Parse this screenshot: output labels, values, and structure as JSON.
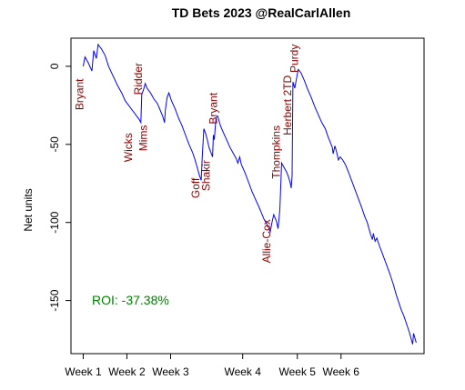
{
  "chart_data": {
    "type": "line",
    "title": "TD Bets 2023 @RealCarlAllen",
    "xlabel": "",
    "ylabel": "Net units",
    "x_ticks": [
      "Week 1",
      "Week 2",
      "Week 3",
      "Week 4",
      "Week 5",
      "Week 6"
    ],
    "y_ticks": [
      0,
      -50,
      -100,
      -150
    ],
    "ylim": [
      -184,
      18
    ],
    "grid": false,
    "roi_text": "ROI: -37.38%",
    "series": [
      {
        "color": "#0000ff",
        "points": [
          [
            1.0,
            0
          ],
          [
            1.04,
            6
          ],
          [
            1.12,
            2
          ],
          [
            1.2,
            -3
          ],
          [
            1.24,
            10
          ],
          [
            1.3,
            5
          ],
          [
            1.34,
            14
          ],
          [
            1.42,
            11
          ],
          [
            1.5,
            7
          ],
          [
            1.58,
            0
          ],
          [
            1.68,
            -6
          ],
          [
            1.78,
            -12
          ],
          [
            1.88,
            -17
          ],
          [
            1.96,
            -22
          ],
          [
            2.04,
            -25
          ],
          [
            2.12,
            -28
          ],
          [
            2.2,
            -31
          ],
          [
            2.28,
            -34
          ],
          [
            2.32,
            -36
          ],
          [
            2.34,
            -18
          ],
          [
            2.38,
            -15
          ],
          [
            2.42,
            -11
          ],
          [
            2.46,
            -14
          ],
          [
            2.54,
            -17
          ],
          [
            2.62,
            -21
          ],
          [
            2.7,
            -24
          ],
          [
            2.76,
            -28
          ],
          [
            2.82,
            -32
          ],
          [
            2.86,
            -36
          ],
          [
            2.88,
            -28
          ],
          [
            2.92,
            -20
          ],
          [
            2.96,
            -17
          ],
          [
            3.02,
            -22
          ],
          [
            3.1,
            -27
          ],
          [
            3.18,
            -33
          ],
          [
            3.26,
            -38
          ],
          [
            3.34,
            -44
          ],
          [
            3.42,
            -50
          ],
          [
            3.5,
            -55
          ],
          [
            3.56,
            -60
          ],
          [
            3.62,
            -66
          ],
          [
            3.66,
            -70
          ],
          [
            3.7,
            -73
          ],
          [
            3.72,
            -60
          ],
          [
            3.76,
            -40
          ],
          [
            3.8,
            -43
          ],
          [
            3.84,
            -47
          ],
          [
            3.88,
            -52
          ],
          [
            3.92,
            -55
          ],
          [
            3.96,
            -58
          ],
          [
            3.98,
            -44
          ],
          [
            4.0,
            -47
          ],
          [
            4.04,
            -33
          ],
          [
            4.08,
            -32
          ],
          [
            4.14,
            -38
          ],
          [
            4.2,
            -42
          ],
          [
            4.28,
            -47
          ],
          [
            4.36,
            -52
          ],
          [
            4.44,
            -56
          ],
          [
            4.5,
            -59
          ],
          [
            4.54,
            -62
          ],
          [
            4.58,
            -58
          ],
          [
            4.62,
            -63
          ],
          [
            4.7,
            -68
          ],
          [
            4.78,
            -74
          ],
          [
            4.86,
            -80
          ],
          [
            4.94,
            -85
          ],
          [
            5.02,
            -90
          ],
          [
            5.08,
            -94
          ],
          [
            5.14,
            -98
          ],
          [
            5.2,
            -101
          ],
          [
            5.24,
            -103
          ],
          [
            5.28,
            -106
          ],
          [
            5.32,
            -100
          ],
          [
            5.36,
            -95
          ],
          [
            5.42,
            -99
          ],
          [
            5.46,
            -104
          ],
          [
            5.5,
            -92
          ],
          [
            5.54,
            -62
          ],
          [
            5.58,
            -64
          ],
          [
            5.62,
            -66
          ],
          [
            5.66,
            -68
          ],
          [
            5.7,
            -71
          ],
          [
            5.74,
            -75
          ],
          [
            5.76,
            -78
          ],
          [
            5.78,
            -70
          ],
          [
            5.8,
            -10
          ],
          [
            5.84,
            -14
          ],
          [
            5.88,
            -8
          ],
          [
            5.92,
            -2
          ],
          [
            5.98,
            -4
          ],
          [
            6.06,
            -9
          ],
          [
            6.14,
            -15
          ],
          [
            6.22,
            -20
          ],
          [
            6.3,
            -26
          ],
          [
            6.38,
            -31
          ],
          [
            6.46,
            -36
          ],
          [
            6.54,
            -40
          ],
          [
            6.6,
            -45
          ],
          [
            6.66,
            -49
          ],
          [
            6.7,
            -52
          ],
          [
            6.72,
            -56
          ],
          [
            6.76,
            -51
          ],
          [
            6.8,
            -55
          ],
          [
            6.84,
            -60
          ],
          [
            6.88,
            -58
          ],
          [
            6.94,
            -60
          ],
          [
            7.0,
            -63
          ],
          [
            7.06,
            -67
          ],
          [
            7.14,
            -73
          ],
          [
            7.22,
            -79
          ],
          [
            7.3,
            -85
          ],
          [
            7.38,
            -91
          ],
          [
            7.44,
            -96
          ],
          [
            7.5,
            -100
          ],
          [
            7.54,
            -104
          ],
          [
            7.58,
            -108
          ],
          [
            7.62,
            -111
          ],
          [
            7.64,
            -107
          ],
          [
            7.68,
            -112
          ],
          [
            7.72,
            -110
          ],
          [
            7.78,
            -115
          ],
          [
            7.86,
            -121
          ],
          [
            7.94,
            -127
          ],
          [
            8.02,
            -133
          ],
          [
            8.1,
            -140
          ],
          [
            8.16,
            -146
          ],
          [
            8.22,
            -151
          ],
          [
            8.28,
            -156
          ],
          [
            8.34,
            -160
          ],
          [
            8.4,
            -165
          ],
          [
            8.46,
            -170
          ],
          [
            8.5,
            -174
          ],
          [
            8.54,
            -178
          ],
          [
            8.56,
            -171
          ],
          [
            8.6,
            -175
          ],
          [
            8.62,
            -177
          ]
        ]
      }
    ],
    "annotations": [
      {
        "text": "Bryant",
        "x": 1.0,
        "y": -18
      },
      {
        "text": "Ridder",
        "x": 2.34,
        "y": -8
      },
      {
        "text": "Wicks",
        "x": 2.12,
        "y": -52
      },
      {
        "text": "Mims",
        "x": 2.46,
        "y": -46
      },
      {
        "text": "Goff",
        "x": 3.66,
        "y": -78
      },
      {
        "text": "Shakir",
        "x": 3.9,
        "y": -70
      },
      {
        "text": "Bryant",
        "x": 4.06,
        "y": -27
      },
      {
        "text": "Allie-Cox",
        "x": 5.28,
        "y": -112
      },
      {
        "text": "Thompkins",
        "x": 5.5,
        "y": -55
      },
      {
        "text": "Herbert 2TD",
        "x": 5.76,
        "y": -25
      },
      {
        "text": "Purdy",
        "x": 5.92,
        "y": 5
      }
    ]
  }
}
